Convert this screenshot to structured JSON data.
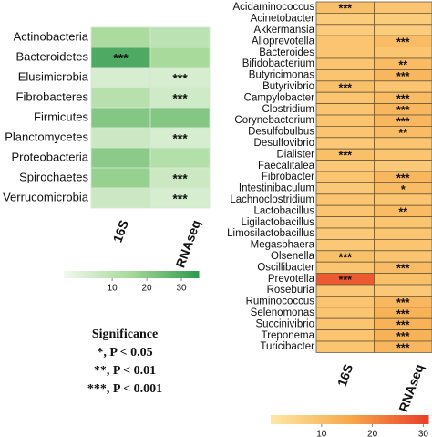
{
  "chart_data": [
    {
      "type": "heatmap",
      "categories": [
        "Actinobacteria",
        "Bacteroidetes",
        "Elusimicrobia",
        "Fibrobacteres",
        "Firmicutes",
        "Planctomycetes",
        "Proteobacteria",
        "Spirochaetes",
        "Verrucomicrobia"
      ],
      "series": [
        {
          "name": "16S",
          "values": [
            14,
            30,
            3,
            11,
            21,
            6,
            20,
            18,
            6
          ],
          "significance": [
            null,
            "***",
            null,
            null,
            null,
            null,
            null,
            null,
            null
          ]
        },
        {
          "name": "RNAseq",
          "values": [
            10,
            15,
            3,
            5,
            21,
            3,
            12,
            6,
            3
          ],
          "significance": [
            null,
            null,
            "***",
            "***",
            null,
            "***",
            null,
            "***",
            "***"
          ]
        }
      ],
      "colormap": [
        "#f1f8ee",
        "#a6d99a",
        "#2f9a4f"
      ],
      "cell_border": "#d6e6d2",
      "clim": [
        -4,
        35
      ],
      "cticks": [
        10,
        20,
        30
      ]
    },
    {
      "type": "heatmap",
      "categories": [
        "Acidaminococcus",
        "Acinetobacter",
        "Akkermansia",
        "Alloprevotella",
        "Bacteroides",
        "Bifidobacterium",
        "Butyricimonas",
        "Butyrivibrio",
        "Campylobacter",
        "Clostridium",
        "Corynebacterium",
        "Desulfobulbus",
        "Desulfovibrio",
        "Dialister",
        "Faecalitalea",
        "Fibrobacter",
        "Intestinibaculum",
        "Lachnoclostridium",
        "Lactobacillus",
        "Ligilactobacillus",
        "Limosilactobacillus",
        "Megasphaera",
        "Olsenella",
        "Oscillibacter",
        "Prevotella",
        "Roseburia",
        "Ruminococcus",
        "Selenomonas",
        "Succinivibrio",
        "Treponema",
        "Turicibacter"
      ],
      "series": [
        {
          "name": "16S",
          "values": [
            10,
            7,
            7,
            9,
            9,
            9,
            9,
            10,
            9,
            9,
            9,
            9,
            8,
            10,
            8,
            9,
            8,
            9,
            9,
            8,
            8,
            8,
            10,
            9,
            27,
            8,
            9,
            9,
            9,
            9,
            9
          ],
          "significance": [
            "***",
            null,
            null,
            null,
            null,
            null,
            null,
            "***",
            null,
            null,
            null,
            null,
            null,
            "***",
            null,
            null,
            null,
            null,
            null,
            null,
            null,
            null,
            "***",
            null,
            "***",
            null,
            null,
            null,
            null,
            null,
            null
          ]
        },
        {
          "name": "RNAseq",
          "values": [
            9,
            7,
            7,
            11,
            9,
            11,
            12,
            9,
            11,
            12,
            12,
            11,
            9,
            9,
            8,
            12,
            11,
            9,
            11,
            9,
            9,
            9,
            9,
            11,
            10,
            8,
            12,
            13,
            13,
            13,
            12
          ],
          "significance": [
            null,
            null,
            null,
            "***",
            null,
            "**",
            "***",
            null,
            "***",
            "***",
            "***",
            "**",
            null,
            null,
            null,
            "***",
            "*",
            null,
            "**",
            null,
            null,
            null,
            null,
            "***",
            null,
            null,
            "***",
            "***",
            "***",
            "***",
            "***"
          ]
        }
      ],
      "colormap": [
        "#fde9a4",
        "#f7a94a",
        "#e83f28"
      ],
      "cell_border": "#6b5a3a",
      "clim": [
        0,
        31
      ],
      "cticks": [
        10,
        20,
        30
      ]
    }
  ],
  "significance_legend": {
    "title": "Significance",
    "items": [
      "*, P < 0.05",
      "**, P < 0.01",
      "***, P < 0.001"
    ]
  }
}
